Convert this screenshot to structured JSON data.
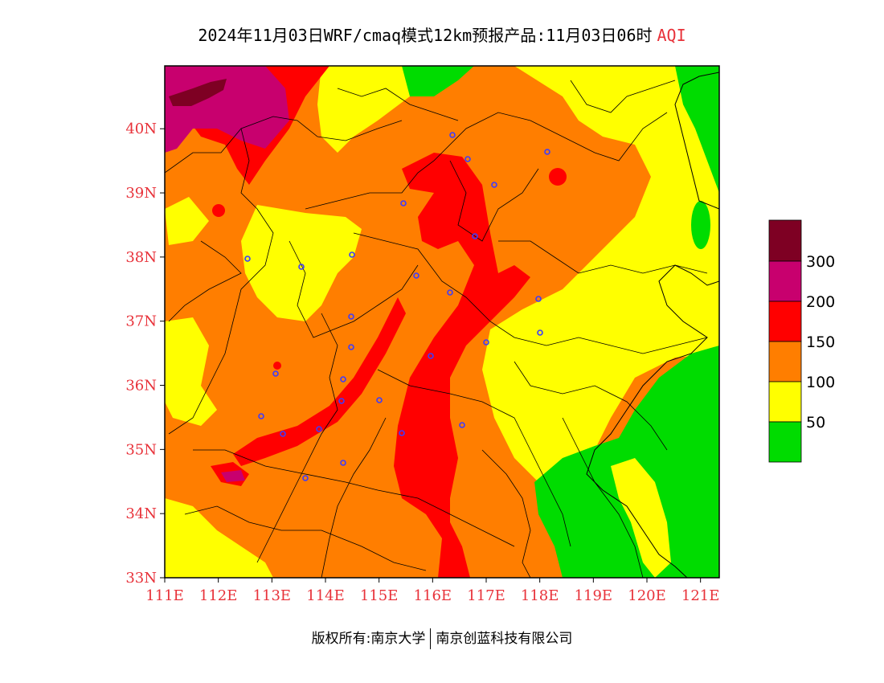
{
  "title": {
    "main": "2024年11月03日WRF/cmaq模式12km预报产品:11月03日06时",
    "accent": "AQI"
  },
  "axes": {
    "x_ticks": [
      "111E",
      "112E",
      "113E",
      "114E",
      "115E",
      "116E",
      "117E",
      "118E",
      "119E",
      "120E",
      "121E"
    ],
    "y_ticks": [
      "33N",
      "34N",
      "35N",
      "36N",
      "37N",
      "38N",
      "39N",
      "40N"
    ]
  },
  "legend": {
    "labels": [
      "50",
      "100",
      "150",
      "200",
      "300"
    ],
    "colors": {
      "good": "#00dc00",
      "moderate": "#ffff00",
      "usg": "#ff7e00",
      "unhealthy": "#ff0000",
      "very_unhealthy": "#c8006e",
      "hazardous": "#7e0023"
    }
  },
  "footer": {
    "left": "版权所有:南京大学",
    "right": "南京创蓝科技有限公司"
  }
}
